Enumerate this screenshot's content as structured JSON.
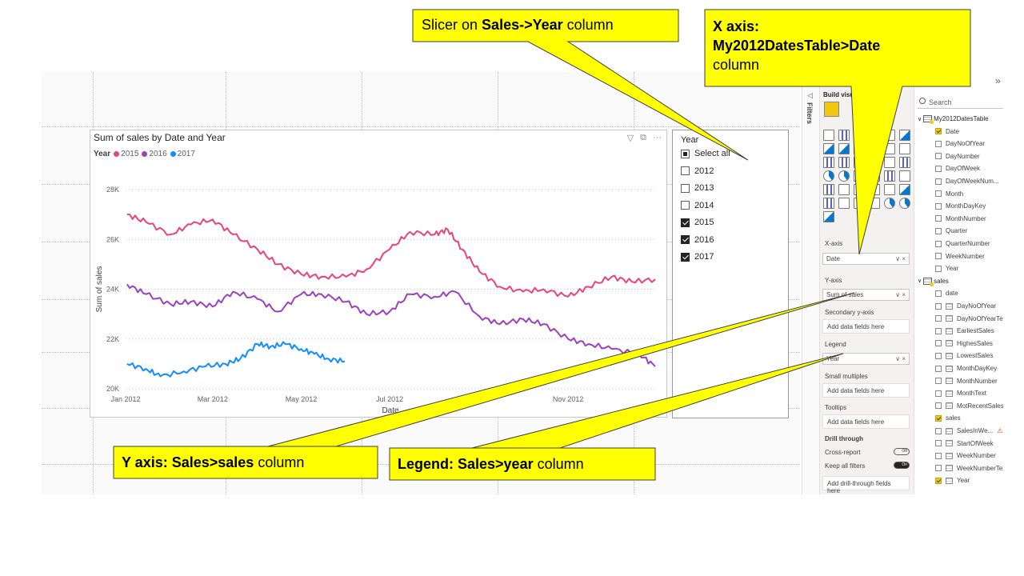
{
  "chart_data": {
    "type": "line",
    "title": "Sum of sales by Date and Year",
    "xlabel": "Date",
    "ylabel": "Sum of sales",
    "x_ticks": [
      "Jan 2012",
      "Mar 2012",
      "May 2012",
      "Jul 2012",
      "Nov 2012"
    ],
    "x_range": [
      "2012-01-01",
      "2012-12-31"
    ],
    "y_ticks": [
      "20K",
      "22K",
      "24K",
      "26K",
      "28K"
    ],
    "ylim": [
      20000,
      28000
    ],
    "legend_title": "Year",
    "legend_position": "top-left",
    "grid": true,
    "series": [
      {
        "name": "2015",
        "color": "#E8437D",
        "points": [
          [
            "2012-01-02",
            27000
          ],
          [
            "2012-01-15",
            26700
          ],
          [
            "2012-02-01",
            26200
          ],
          [
            "2012-02-15",
            26600
          ],
          [
            "2012-03-01",
            26800
          ],
          [
            "2012-03-15",
            26200
          ],
          [
            "2012-04-01",
            25600
          ],
          [
            "2012-04-15",
            25000
          ],
          [
            "2012-05-01",
            24600
          ],
          [
            "2012-05-15",
            24500
          ],
          [
            "2012-06-01",
            24500
          ],
          [
            "2012-06-15",
            24800
          ],
          [
            "2012-07-01",
            25600
          ],
          [
            "2012-07-15",
            26300
          ],
          [
            "2012-08-01",
            26200
          ],
          [
            "2012-08-10",
            26400
          ],
          [
            "2012-08-20",
            25600
          ],
          [
            "2012-09-01",
            24700
          ],
          [
            "2012-09-15",
            24100
          ],
          [
            "2012-10-01",
            23900
          ],
          [
            "2012-10-15",
            24000
          ],
          [
            "2012-11-01",
            23700
          ],
          [
            "2012-11-15",
            24100
          ],
          [
            "2012-12-01",
            24500
          ],
          [
            "2012-12-15",
            24300
          ],
          [
            "2012-12-31",
            24400
          ]
        ]
      },
      {
        "name": "2016",
        "color": "#9B40BF",
        "points": [
          [
            "2012-01-02",
            24200
          ],
          [
            "2012-01-15",
            23800
          ],
          [
            "2012-02-01",
            23400
          ],
          [
            "2012-02-15",
            23500
          ],
          [
            "2012-03-01",
            23300
          ],
          [
            "2012-03-15",
            23900
          ],
          [
            "2012-04-01",
            23600
          ],
          [
            "2012-04-15",
            23100
          ],
          [
            "2012-05-01",
            23800
          ],
          [
            "2012-05-15",
            23800
          ],
          [
            "2012-06-01",
            23500
          ],
          [
            "2012-06-15",
            23000
          ],
          [
            "2012-07-01",
            23100
          ],
          [
            "2012-07-15",
            23800
          ],
          [
            "2012-08-01",
            23700
          ],
          [
            "2012-08-15",
            23900
          ],
          [
            "2012-09-01",
            22900
          ],
          [
            "2012-09-15",
            22600
          ],
          [
            "2012-10-01",
            22800
          ],
          [
            "2012-10-15",
            22600
          ],
          [
            "2012-11-01",
            22000
          ],
          [
            "2012-11-15",
            21800
          ],
          [
            "2012-12-01",
            21600
          ],
          [
            "2012-12-20",
            21400
          ],
          [
            "2012-12-31",
            20900
          ]
        ]
      },
      {
        "name": "2017",
        "color": "#118DFF",
        "points": [
          [
            "2012-01-02",
            21000
          ],
          [
            "2012-01-15",
            20800
          ],
          [
            "2012-01-25",
            20500
          ],
          [
            "2012-02-10",
            20700
          ],
          [
            "2012-02-25",
            20900
          ],
          [
            "2012-03-10",
            21000
          ],
          [
            "2012-03-20",
            21200
          ],
          [
            "2012-04-01",
            21800
          ],
          [
            "2012-04-10",
            21700
          ],
          [
            "2012-04-20",
            21800
          ],
          [
            "2012-05-01",
            21600
          ],
          [
            "2012-05-10",
            21400
          ],
          [
            "2012-05-20",
            21200
          ],
          [
            "2012-05-31",
            21100
          ]
        ]
      }
    ]
  },
  "slicer": {
    "title": "Year",
    "items": [
      {
        "label": "Select all",
        "state": "partial"
      },
      {
        "label": "2012",
        "state": "off"
      },
      {
        "label": "2013",
        "state": "off"
      },
      {
        "label": "2014",
        "state": "off"
      },
      {
        "label": "2015",
        "state": "on"
      },
      {
        "label": "2016",
        "state": "on"
      },
      {
        "label": "2017",
        "state": "on"
      }
    ]
  },
  "filters_pane": {
    "label": "Filters"
  },
  "viz_pane": {
    "title": "Build visual",
    "x_axis_label": "X-axis",
    "x_axis_value": "Date",
    "y_axis_label": "Y-axis",
    "y_axis_value": "Sum of sales",
    "secondary_label": "Secondary y-axis",
    "secondary_placeholder": "Add data fields here",
    "legend_label": "Legend",
    "legend_value": "Year",
    "small_multiples_label": "Small multiples",
    "small_multiples_placeholder": "Add data fields here",
    "tooltips_label": "Tooltips",
    "tooltips_placeholder": "Add data fields here",
    "drill_label": "Drill through",
    "cross_report_label": "Cross-report",
    "cross_report_state": "Off",
    "keep_filters_label": "Keep all filters",
    "keep_filters_state": "On",
    "drill_placeholder": "Add drill-through fields here"
  },
  "data_pane": {
    "search_placeholder": "Search",
    "tables": [
      {
        "name": "My2012DatesTable",
        "fields": [
          {
            "name": "Date",
            "checked": true
          },
          {
            "name": "DayNoOfYear",
            "checked": false
          },
          {
            "name": "DayNumber",
            "checked": false
          },
          {
            "name": "DayOfWeek",
            "checked": false
          },
          {
            "name": "DayOfWeekNum...",
            "checked": false
          },
          {
            "name": "Month",
            "checked": false
          },
          {
            "name": "MonthDayKey",
            "checked": false
          },
          {
            "name": "MonthNumber",
            "checked": false
          },
          {
            "name": "Quarter",
            "checked": false
          },
          {
            "name": "QuarterNumber",
            "checked": false
          },
          {
            "name": "WeekNumber",
            "checked": false
          },
          {
            "name": "Year",
            "checked": false
          }
        ]
      },
      {
        "name": "sales",
        "fields": [
          {
            "name": "date",
            "checked": false
          },
          {
            "name": "DayNoOfYear",
            "checked": false
          },
          {
            "name": "DayNoOfYearText",
            "checked": false
          },
          {
            "name": "EarliestSales",
            "checked": false
          },
          {
            "name": "HighesSales",
            "checked": false
          },
          {
            "name": "LowestSales",
            "checked": false
          },
          {
            "name": "MonthDayKey",
            "checked": false
          },
          {
            "name": "MonthNumber",
            "checked": false
          },
          {
            "name": "MonthText",
            "checked": false
          },
          {
            "name": "MotRecentSales",
            "checked": false
          },
          {
            "name": "sales",
            "checked": true
          },
          {
            "name": "SalesInWe...",
            "checked": false,
            "warning": true
          },
          {
            "name": "StartOfWeek",
            "checked": false
          },
          {
            "name": "WeekNumber",
            "checked": false
          },
          {
            "name": "WeekNumberText",
            "checked": false
          },
          {
            "name": "Year",
            "checked": true
          }
        ]
      }
    ]
  },
  "callouts": {
    "slicer": {
      "pre": "Slicer on ",
      "bold": "Sales->Year",
      "post": " column"
    },
    "xaxis": {
      "bold1": "X axis:",
      "bold2": "My2012DatesTable>Date",
      "post": "column"
    },
    "yaxis": {
      "bold": "Y axis: Sales>sales",
      "post": " column"
    },
    "legend": {
      "bold": "Legend: Sales>year",
      "post": " column"
    },
    "fill": "#FFFF00",
    "stroke": "#404040"
  }
}
